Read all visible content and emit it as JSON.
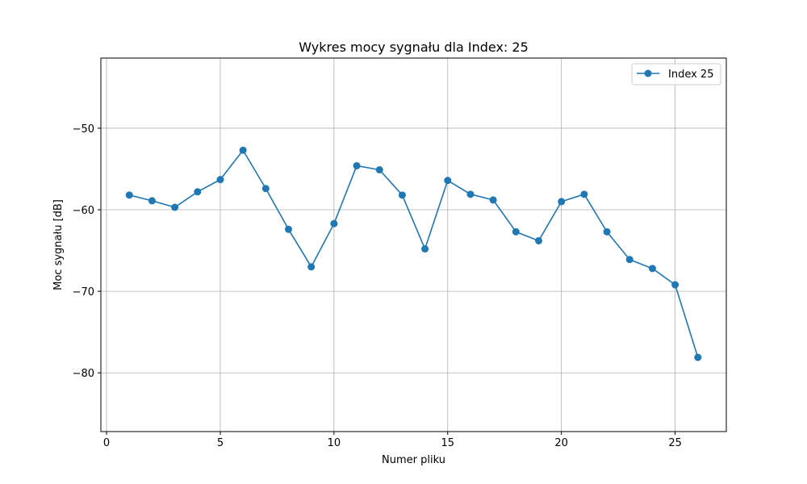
{
  "chart_data": {
    "type": "line",
    "title": "Wykres mocy sygnału dla Index: 25",
    "xlabel": "Numer pliku",
    "ylabel": "Moc sygnału [dB]",
    "xlim": [
      -0.25,
      27.25
    ],
    "ylim": [
      -87.2,
      -41.4
    ],
    "x_ticks": [
      0,
      5,
      10,
      15,
      20,
      25
    ],
    "x_tick_labels": [
      "0",
      "5",
      "10",
      "15",
      "20",
      "25"
    ],
    "y_ticks": [
      -80,
      -70,
      -60,
      -50
    ],
    "y_tick_labels": [
      "−80",
      "−70",
      "−60",
      "−50"
    ],
    "grid": true,
    "legend_position": "top-right",
    "series": [
      {
        "name": "Index 25",
        "color": "#1f77b4",
        "marker": "circle",
        "x": [
          1,
          2,
          3,
          4,
          5,
          6,
          7,
          8,
          9,
          10,
          11,
          12,
          13,
          14,
          15,
          16,
          17,
          18,
          19,
          20,
          21,
          22,
          23,
          24,
          25,
          26
        ],
        "y": [
          -58.2,
          -58.9,
          -59.7,
          -57.8,
          -56.3,
          -52.7,
          -57.4,
          -62.4,
          -67.0,
          -61.7,
          -54.6,
          -55.1,
          -58.2,
          -64.8,
          -56.4,
          -58.1,
          -58.8,
          -62.7,
          -63.8,
          -59.0,
          -58.1,
          -62.7,
          -66.1,
          -67.2,
          -69.2,
          -78.1
        ]
      }
    ]
  }
}
